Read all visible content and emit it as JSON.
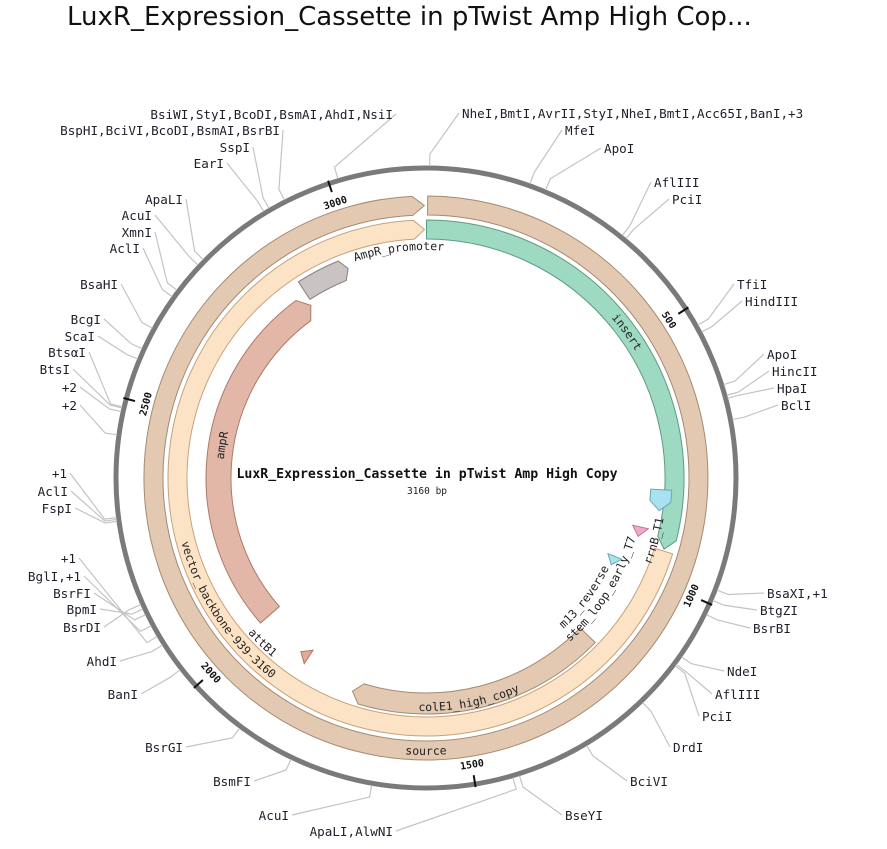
{
  "title": "LuxR_Expression_Cassette in pTwist Amp High Cop...",
  "map": {
    "name": "LuxR_Expression_Cassette in pTwist Amp High Copy",
    "length_label": "3160 bp",
    "length_bp": 3160,
    "backbone_color": "#7a7a7a"
  },
  "ticks": [
    {
      "bp": 500,
      "label": "500"
    },
    {
      "bp": 1000,
      "label": "1000"
    },
    {
      "bp": 1500,
      "label": "1500"
    },
    {
      "bp": 2000,
      "label": "2000"
    },
    {
      "bp": 2500,
      "label": "2500"
    },
    {
      "bp": 3000,
      "label": "3000"
    }
  ],
  "features": [
    {
      "label": "source",
      "start": 3,
      "end": 3157,
      "direction": "forward",
      "color": "#e3c9b1",
      "stroke": "#a58a72"
    },
    {
      "label": "insert",
      "start": 1,
      "end": 936,
      "direction": "forward",
      "color": "#9ed9c1",
      "stroke": "#5d9c83"
    },
    {
      "label": "vector_backbone-939-3160",
      "start": 940,
      "end": 3157,
      "direction": "forward",
      "color": "#fde3c6",
      "stroke": "#c7a17c"
    },
    {
      "label": "AmpR_promoter",
      "start": 2870,
      "end": 2981,
      "direction": "forward",
      "color": "#c9c3c3",
      "stroke": "#8a8080"
    },
    {
      "label": "ampR",
      "start": 2008,
      "end": 2864,
      "direction": "forward",
      "color": "#e3b7a8",
      "stroke": "#ad7868"
    },
    {
      "label": "colE1_high_copy",
      "start": 1178,
      "end": 1747,
      "direction": "forward",
      "color": "#e3c9b1",
      "stroke": "#a58a72"
    },
    {
      "label": "rrnB_T1",
      "start": 815,
      "end": 860,
      "direction": "forward",
      "color": "#a8e2ef",
      "stroke": "#6aa9b8"
    },
    {
      "label": "stem_loop_early_T7",
      "start": 903,
      "end": 925,
      "direction": "forward",
      "color": "#f1a9c9",
      "stroke": "#c27799"
    },
    {
      "label": "m13_reverse",
      "start": 988,
      "end": 1010,
      "direction": "forward",
      "color": "#a8e2ef",
      "stroke": "#6aa9b8"
    },
    {
      "label": "attB1",
      "start": 1872,
      "end": 1894,
      "direction": "forward",
      "color": "#e3a99b",
      "stroke": "#b07464"
    }
  ],
  "sites": [
    {
      "label": "NheI,BmtI,AvrII,StyI,NheI,BmtI,Acc65I,BanI,+3",
      "bp": 6
    },
    {
      "label": "MfeI",
      "bp": 171
    },
    {
      "label": "ApoI",
      "bp": 198
    },
    {
      "label": "AflIII",
      "bp": 342
    },
    {
      "label": "PciI",
      "bp": 350
    },
    {
      "label": "TfiI",
      "bp": 532
    },
    {
      "label": "HindIII",
      "bp": 545
    },
    {
      "label": "ApoI",
      "bp": 637
    },
    {
      "label": "HincII",
      "bp": 655
    },
    {
      "label": "HpaI",
      "bp": 660
    },
    {
      "label": "BclI",
      "bp": 695
    },
    {
      "label": "BsaXI,+1",
      "bp": 975
    },
    {
      "label": "BtgZI",
      "bp": 993
    },
    {
      "label": "BsrBI",
      "bp": 1018
    },
    {
      "label": "NdeI",
      "bp": 1097
    },
    {
      "label": "AflIII",
      "bp": 1112
    },
    {
      "label": "PciI",
      "bp": 1115
    },
    {
      "label": "DrdI",
      "bp": 1194
    },
    {
      "label": "BciVI",
      "bp": 1308
    },
    {
      "label": "BseYI",
      "bp": 1427
    },
    {
      "label": "ApaLI,AlwNI",
      "bp": 1438
    },
    {
      "label": "AcuI",
      "bp": 1668
    },
    {
      "label": "BsmFI",
      "bp": 1805
    },
    {
      "label": "BsrGI",
      "bp": 1902
    },
    {
      "label": "BanI",
      "bp": 2037
    },
    {
      "label": "AhdI",
      "bp": 2086
    },
    {
      "label": "BsrDI",
      "bp": 2160
    },
    {
      "label": "BpmI",
      "bp": 2152
    },
    {
      "label": "BsrFI",
      "bp": 2142
    },
    {
      "label": "BglI,+1",
      "bp": 2122
    },
    {
      "label": "+1",
      "bp": 2102
    },
    {
      "label": "FspI",
      "bp": 2300
    },
    {
      "label": "AclI",
      "bp": 2303
    },
    {
      "label": "+1",
      "bp": 2306
    },
    {
      "label": "+2",
      "bp": 2440
    },
    {
      "label": "+2",
      "bp": 2478
    },
    {
      "label": "BtsI",
      "bp": 2484
    },
    {
      "label": "BtsαI",
      "bp": 2486
    },
    {
      "label": "ScaI",
      "bp": 2567
    },
    {
      "label": "BcgI",
      "bp": 2585
    },
    {
      "label": "BsaHI",
      "bp": 2622
    },
    {
      "label": "AclI",
      "bp": 2682
    },
    {
      "label": "XmnI",
      "bp": 2695
    },
    {
      "label": "AcuI",
      "bp": 2748
    },
    {
      "label": "ApaLI",
      "bp": 2760
    },
    {
      "label": "EarI",
      "bp": 2885
    },
    {
      "label": "SspI",
      "bp": 2895
    },
    {
      "label": "BspHI,BciVI,BcoDI,BsmAI,BsrBI",
      "bp": 2923
    },
    {
      "label": "BsiWI,StyI,BcoDI,BsmAI,AhdI,NsiI",
      "bp": 3016
    }
  ]
}
